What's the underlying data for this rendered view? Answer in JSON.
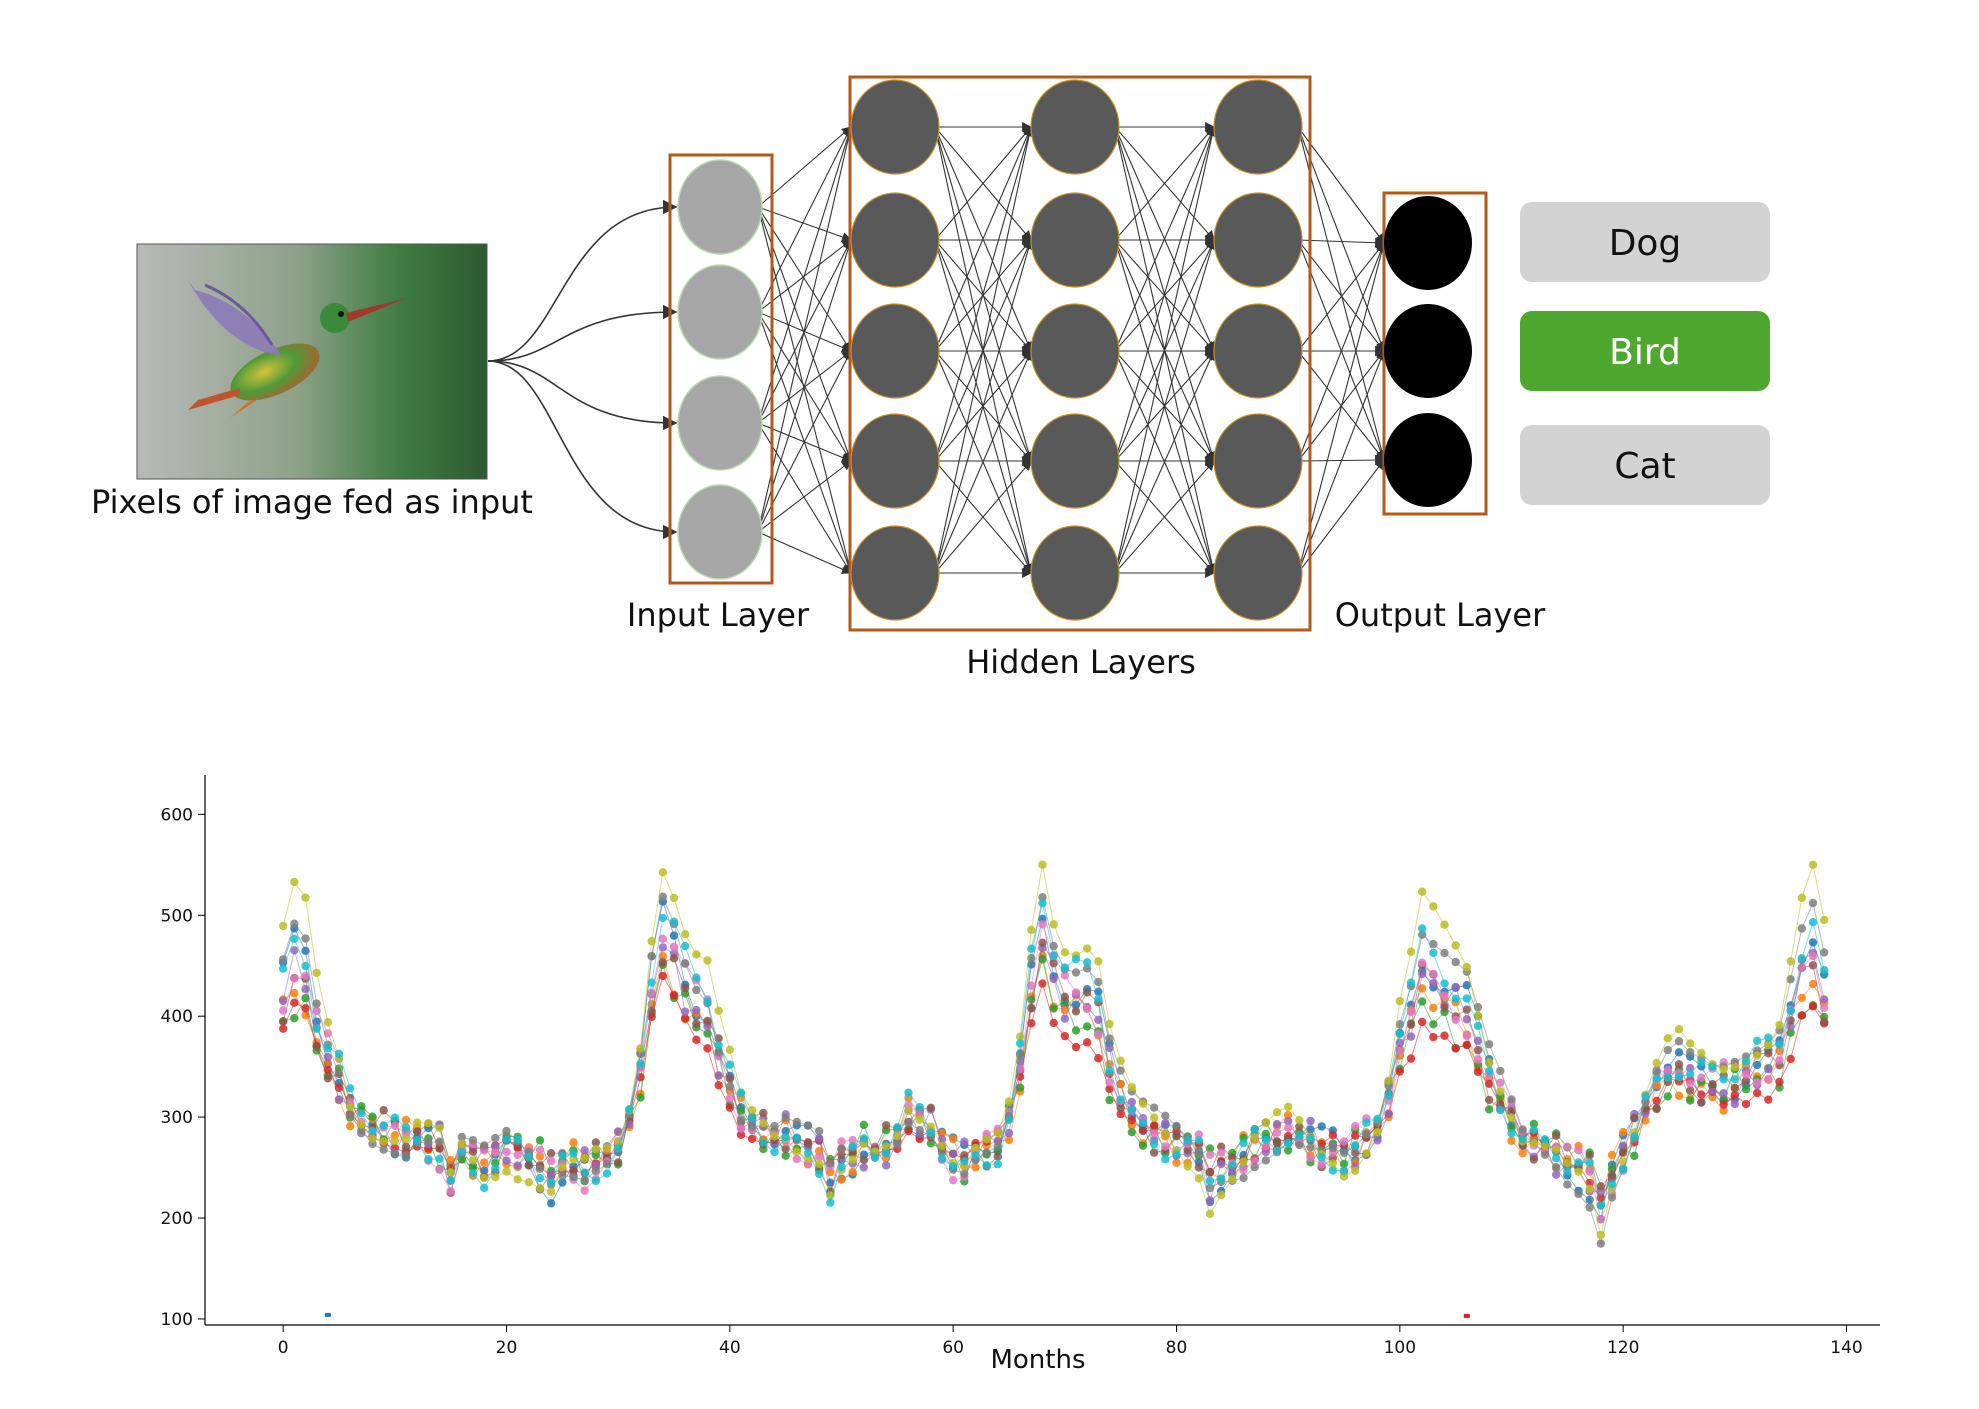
{
  "diagram": {
    "input_caption": "Pixels of image fed as input",
    "input_layer_label": "Input Layer",
    "hidden_layers_label": "Hidden Layers",
    "output_layer_label": "Output Layer",
    "layers": {
      "input_nodes": 4,
      "hidden_layers": 3,
      "hidden_nodes": 5,
      "output_nodes": 3
    },
    "classes": [
      {
        "label": "Dog",
        "selected": false
      },
      {
        "label": "Bird",
        "selected": true
      },
      {
        "label": "Cat",
        "selected": false
      }
    ],
    "image_icon": "hummingbird-photo",
    "colors": {
      "layer_box": "#b35a1a",
      "input_node": "#a6a6a6",
      "hidden_node": "#595959",
      "output_node": "#000000",
      "class_default": "#d3d3d3",
      "class_selected": "#4ea72e",
      "class_selected_text": "#ffffff",
      "edge": "#333333"
    }
  },
  "chart_data": {
    "type": "line",
    "title": "",
    "xlabel": "Months",
    "ylabel": "",
    "xlim": [
      -7,
      143
    ],
    "ylim": [
      94,
      639
    ],
    "xticks": [
      0,
      20,
      40,
      60,
      80,
      100,
      120,
      140
    ],
    "yticks": [
      100,
      200,
      300,
      400,
      500,
      600
    ],
    "markers": true,
    "grid": false,
    "legend": "none",
    "base_series": [
      420,
      450,
      440,
      390,
      360,
      340,
      310,
      300,
      290,
      285,
      280,
      275,
      280,
      275,
      270,
      240,
      265,
      260,
      255,
      262,
      270,
      265,
      260,
      250,
      240,
      250,
      250,
      248,
      255,
      260,
      270,
      300,
      350,
      430,
      480,
      460,
      430,
      410,
      400,
      360,
      330,
      300,
      290,
      285,
      280,
      282,
      275,
      270,
      265,
      240,
      255,
      260,
      270,
      265,
      270,
      280,
      300,
      295,
      290,
      275,
      260,
      255,
      265,
      270,
      275,
      300,
      350,
      430,
      480,
      440,
      420,
      415,
      415,
      400,
      350,
      320,
      300,
      290,
      285,
      280,
      275,
      270,
      265,
      240,
      250,
      255,
      260,
      270,
      275,
      280,
      285,
      280,
      275,
      270,
      270,
      265,
      270,
      280,
      290,
      320,
      370,
      400,
      440,
      430,
      420,
      410,
      400,
      370,
      340,
      320,
      300,
      280,
      275,
      270,
      265,
      255,
      250,
      240,
      210,
      245,
      265,
      285,
      310,
      330,
      345,
      350,
      340,
      335,
      330,
      330,
      335,
      340,
      345,
      350,
      360,
      400,
      440,
      460,
      420
    ],
    "series_count": 10,
    "series_colors": [
      "#1f77b4",
      "#ff7f0e",
      "#2ca02c",
      "#d62728",
      "#9467bd",
      "#8c564b",
      "#e377c2",
      "#7f7f7f",
      "#bcbd22",
      "#17becf"
    ],
    "series_offsets": [
      10,
      -15,
      -20,
      -35,
      -5,
      0,
      5,
      30,
      50,
      15
    ],
    "series_amp": [
      1.05,
      0.95,
      0.9,
      0.9,
      1.0,
      0.95,
      1.0,
      1.1,
      1.2,
      1.1
    ],
    "outliers": [
      {
        "series": 0,
        "x": 4,
        "y": 104
      },
      {
        "series": 3,
        "x": 106,
        "y": 103
      }
    ]
  }
}
